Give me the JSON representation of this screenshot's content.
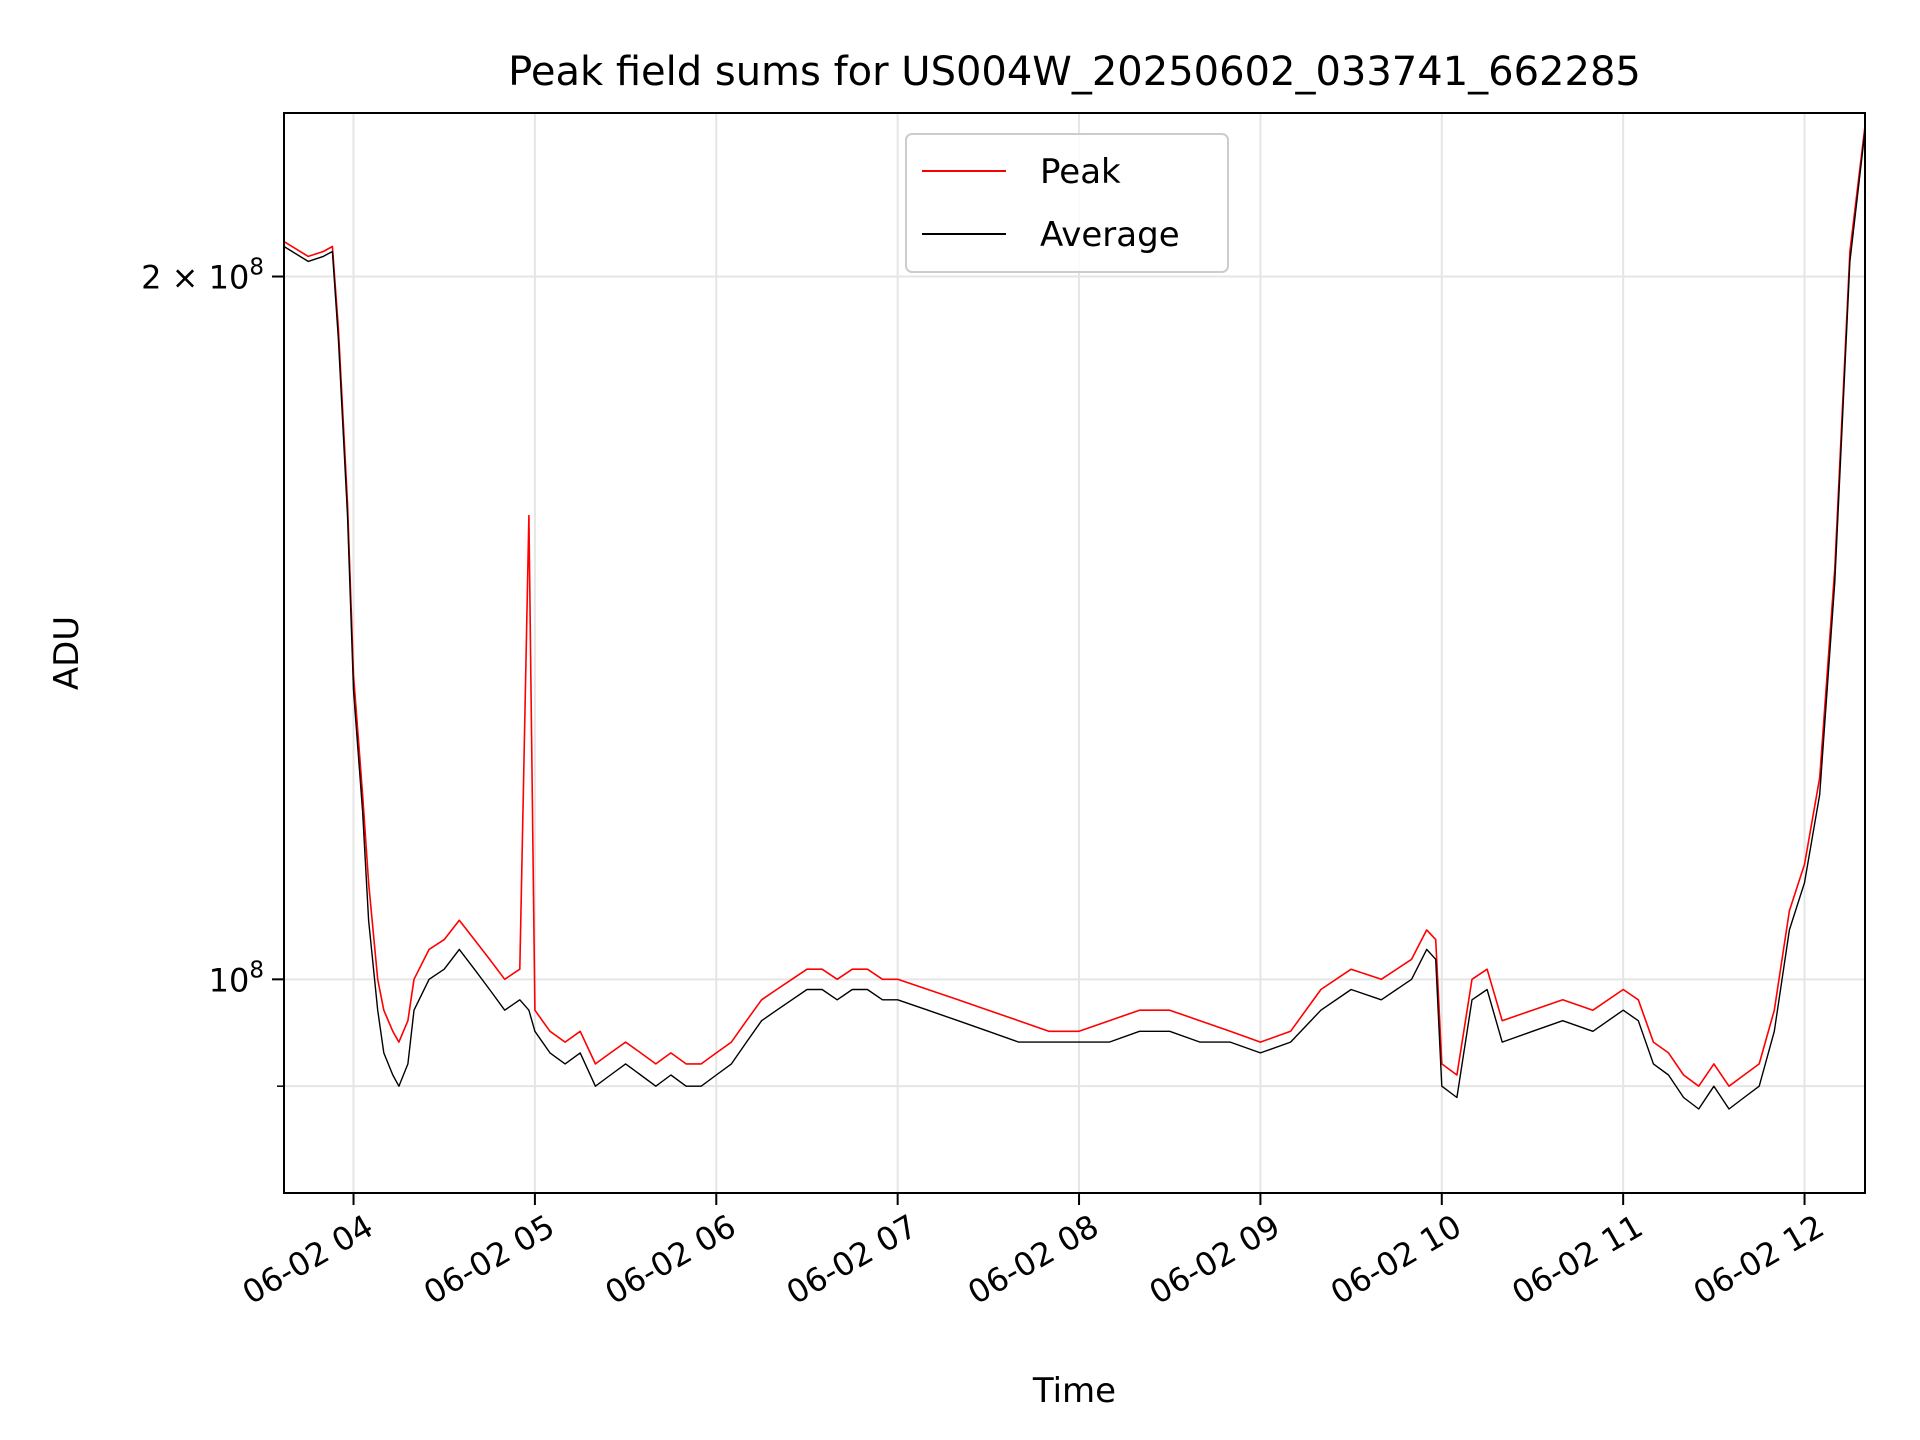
{
  "chart_data": {
    "type": "line",
    "title": "Peak field sums for US004W_20250602_033741_662285",
    "xlabel": "Time",
    "ylabel": "ADU",
    "yscale": "log",
    "grid": true,
    "legend_position": "top-center",
    "xlim": [
      "2025-06-02 03:37",
      "2025-06-02 12:20"
    ],
    "ylim": [
      81000000,
      235000000
    ],
    "x_ticks": [
      "06-02 04",
      "06-02 05",
      "06-02 06",
      "06-02 07",
      "06-02 08",
      "06-02 09",
      "06-02 10",
      "06-02 11",
      "06-02 12"
    ],
    "y_ticks": [
      {
        "value": 100000000,
        "mantissa": "",
        "exponent": "8",
        "base": "10"
      },
      {
        "value": 200000000,
        "mantissa": "2",
        "exponent": "8",
        "base": "10"
      }
    ],
    "series": [
      {
        "name": "Peak",
        "color": "#ff0000",
        "x": [
          "03:37",
          "03:45",
          "03:50",
          "03:53",
          "03:55",
          "03:58",
          "04:00",
          "04:03",
          "04:05",
          "04:08",
          "04:10",
          "04:13",
          "04:15",
          "04:18",
          "04:20",
          "04:25",
          "04:30",
          "04:35",
          "04:40",
          "04:45",
          "04:50",
          "04:55",
          "04:58",
          "05:00",
          "05:05",
          "05:10",
          "05:15",
          "05:20",
          "05:25",
          "05:30",
          "05:35",
          "05:40",
          "05:45",
          "05:50",
          "05:55",
          "06:00",
          "06:05",
          "06:10",
          "06:15",
          "06:20",
          "06:25",
          "06:30",
          "06:35",
          "06:40",
          "06:45",
          "06:50",
          "06:55",
          "07:00",
          "07:10",
          "07:20",
          "07:30",
          "07:40",
          "07:50",
          "08:00",
          "08:10",
          "08:20",
          "08:30",
          "08:40",
          "08:50",
          "09:00",
          "09:10",
          "09:20",
          "09:30",
          "09:40",
          "09:50",
          "09:55",
          "09:58",
          "10:00",
          "10:05",
          "10:10",
          "10:15",
          "10:20",
          "10:30",
          "10:40",
          "10:50",
          "11:00",
          "11:05",
          "11:10",
          "11:15",
          "11:20",
          "11:25",
          "11:30",
          "11:35",
          "11:40",
          "11:45",
          "11:50",
          "11:55",
          "12:00",
          "12:05",
          "12:10",
          "12:15",
          "12:20"
        ],
        "y": [
          207000000,
          204000000,
          205000000,
          206000000,
          190000000,
          160000000,
          135000000,
          120000000,
          110000000,
          100000000,
          97000000,
          95000000,
          94000000,
          96000000,
          100000000,
          103000000,
          104000000,
          106000000,
          104000000,
          102000000,
          100000000,
          101000000,
          158000000,
          97000000,
          95000000,
          94000000,
          95000000,
          92000000,
          93000000,
          94000000,
          93000000,
          92000000,
          93000000,
          92000000,
          92000000,
          93000000,
          94000000,
          96000000,
          98000000,
          99000000,
          100000000,
          101000000,
          101000000,
          100000000,
          101000000,
          101000000,
          100000000,
          100000000,
          99000000,
          98000000,
          97000000,
          96000000,
          95000000,
          95000000,
          96000000,
          97000000,
          97000000,
          96000000,
          95000000,
          94000000,
          95000000,
          99000000,
          101000000,
          100000000,
          102000000,
          105000000,
          104000000,
          92000000,
          91000000,
          100000000,
          101000000,
          96000000,
          97000000,
          98000000,
          97000000,
          99000000,
          98000000,
          94000000,
          93000000,
          91000000,
          90000000,
          92000000,
          90000000,
          91000000,
          92000000,
          97000000,
          107000000,
          112000000,
          122000000,
          150000000,
          205000000,
          232000000
        ]
      },
      {
        "name": "Average",
        "color": "#000000",
        "x": [
          "03:37",
          "03:45",
          "03:50",
          "03:53",
          "03:55",
          "03:58",
          "04:00",
          "04:03",
          "04:05",
          "04:08",
          "04:10",
          "04:13",
          "04:15",
          "04:18",
          "04:20",
          "04:25",
          "04:30",
          "04:35",
          "04:40",
          "04:45",
          "04:50",
          "04:55",
          "04:58",
          "05:00",
          "05:05",
          "05:10",
          "05:15",
          "05:20",
          "05:25",
          "05:30",
          "05:35",
          "05:40",
          "05:45",
          "05:50",
          "05:55",
          "06:00",
          "06:05",
          "06:10",
          "06:15",
          "06:20",
          "06:25",
          "06:30",
          "06:35",
          "06:40",
          "06:45",
          "06:50",
          "06:55",
          "07:00",
          "07:10",
          "07:20",
          "07:30",
          "07:40",
          "07:50",
          "08:00",
          "08:10",
          "08:20",
          "08:30",
          "08:40",
          "08:50",
          "09:00",
          "09:10",
          "09:20",
          "09:30",
          "09:40",
          "09:50",
          "09:55",
          "09:58",
          "10:00",
          "10:05",
          "10:10",
          "10:15",
          "10:20",
          "10:30",
          "10:40",
          "10:50",
          "11:00",
          "11:05",
          "11:10",
          "11:15",
          "11:20",
          "11:25",
          "11:30",
          "11:35",
          "11:40",
          "11:45",
          "11:50",
          "11:55",
          "12:00",
          "12:05",
          "12:10",
          "12:15",
          "12:20"
        ],
        "y": [
          206000000,
          203000000,
          204000000,
          205000000,
          188000000,
          158000000,
          133000000,
          118000000,
          106000000,
          97000000,
          93000000,
          91000000,
          90000000,
          92000000,
          97000000,
          100000000,
          101000000,
          103000000,
          101000000,
          99000000,
          97000000,
          98000000,
          97000000,
          95000000,
          93000000,
          92000000,
          93000000,
          90000000,
          91000000,
          92000000,
          91000000,
          90000000,
          91000000,
          90000000,
          90000000,
          91000000,
          92000000,
          94000000,
          96000000,
          97000000,
          98000000,
          99000000,
          99000000,
          98000000,
          99000000,
          99000000,
          98000000,
          98000000,
          97000000,
          96000000,
          95000000,
          94000000,
          94000000,
          94000000,
          94000000,
          95000000,
          95000000,
          94000000,
          94000000,
          93000000,
          94000000,
          97000000,
          99000000,
          98000000,
          100000000,
          103000000,
          102000000,
          90000000,
          89000000,
          98000000,
          99000000,
          94000000,
          95000000,
          96000000,
          95000000,
          97000000,
          96000000,
          92000000,
          91000000,
          89000000,
          88000000,
          90000000,
          88000000,
          89000000,
          90000000,
          95000000,
          105000000,
          110000000,
          120000000,
          148000000,
          203000000,
          231000000
        ]
      }
    ]
  }
}
